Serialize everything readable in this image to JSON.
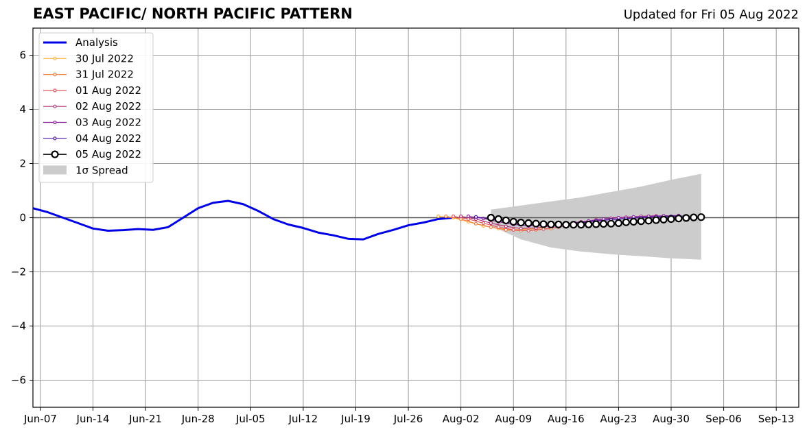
{
  "title": "EAST PACIFIC/ NORTH PACIFIC PATTERN",
  "updated": "Updated for Fri 05 Aug 2022",
  "chart_data": {
    "type": "line",
    "title": "EAST PACIFIC/ NORTH PACIFIC PATTERN",
    "x_axis": {
      "kind": "date",
      "range": [
        "2022-06-06",
        "2022-09-16"
      ],
      "ticks": [
        "2022-06-07",
        "2022-06-14",
        "2022-06-21",
        "2022-06-28",
        "2022-07-05",
        "2022-07-12",
        "2022-07-19",
        "2022-07-26",
        "2022-08-02",
        "2022-08-09",
        "2022-08-16",
        "2022-08-23",
        "2022-08-30",
        "2022-09-06",
        "2022-09-13"
      ],
      "tick_labels": [
        "Jun-07",
        "Jun-14",
        "Jun-21",
        "Jun-28",
        "Jul-05",
        "Jul-12",
        "Jul-19",
        "Jul-26",
        "Aug-02",
        "Aug-09",
        "Aug-16",
        "Aug-23",
        "Aug-30",
        "Sep-06",
        "Sep-13"
      ]
    },
    "y_axis": {
      "range": [
        -7,
        7
      ],
      "ticks": [
        -6,
        -4,
        -2,
        0,
        2,
        4,
        6
      ],
      "tick_labels": [
        "−6",
        "−4",
        "−2",
        "0",
        "2",
        "4",
        "6"
      ]
    },
    "grid": true,
    "zero_line": 0,
    "legend_position": "top-left",
    "legend": [
      "Analysis",
      "30 Jul 2022",
      "31 Jul 2022",
      "01 Aug 2022",
      "02 Aug 2022",
      "03 Aug 2022",
      "04 Aug 2022",
      "05 Aug 2022",
      "1σ Spread"
    ],
    "series": [
      {
        "name": "Analysis",
        "color": "#0000e6",
        "style": "line",
        "points": [
          [
            "2022-06-06",
            0.35
          ],
          [
            "2022-06-08",
            0.2
          ],
          [
            "2022-06-10",
            0.0
          ],
          [
            "2022-06-12",
            -0.2
          ],
          [
            "2022-06-14",
            -0.4
          ],
          [
            "2022-06-16",
            -0.48
          ],
          [
            "2022-06-18",
            -0.46
          ],
          [
            "2022-06-20",
            -0.42
          ],
          [
            "2022-06-22",
            -0.45
          ],
          [
            "2022-06-24",
            -0.35
          ],
          [
            "2022-06-26",
            0.0
          ],
          [
            "2022-06-28",
            0.35
          ],
          [
            "2022-06-30",
            0.55
          ],
          [
            "2022-07-02",
            0.62
          ],
          [
            "2022-07-04",
            0.5
          ],
          [
            "2022-07-06",
            0.25
          ],
          [
            "2022-07-08",
            -0.05
          ],
          [
            "2022-07-10",
            -0.25
          ],
          [
            "2022-07-12",
            -0.38
          ],
          [
            "2022-07-14",
            -0.55
          ],
          [
            "2022-07-16",
            -0.65
          ],
          [
            "2022-07-18",
            -0.78
          ],
          [
            "2022-07-20",
            -0.8
          ],
          [
            "2022-07-22",
            -0.6
          ],
          [
            "2022-07-24",
            -0.45
          ],
          [
            "2022-07-26",
            -0.28
          ],
          [
            "2022-07-28",
            -0.18
          ],
          [
            "2022-07-30",
            -0.05
          ],
          [
            "2022-08-01",
            0.0
          ]
        ]
      },
      {
        "name": "30 Jul 2022",
        "color": "#ffb13b",
        "style": "small-marker",
        "points": [
          [
            "2022-07-30",
            0.05
          ],
          [
            "2022-08-01",
            0.0
          ],
          [
            "2022-08-03",
            -0.15
          ],
          [
            "2022-08-05",
            -0.3
          ],
          [
            "2022-08-07",
            -0.4
          ],
          [
            "2022-08-09",
            -0.45
          ],
          [
            "2022-08-11",
            -0.42
          ],
          [
            "2022-08-13",
            -0.38
          ]
        ]
      },
      {
        "name": "31 Jul 2022",
        "color": "#f07f3c",
        "style": "small-marker",
        "points": [
          [
            "2022-07-31",
            0.05
          ],
          [
            "2022-08-02",
            -0.05
          ],
          [
            "2022-08-04",
            -0.22
          ],
          [
            "2022-08-06",
            -0.35
          ],
          [
            "2022-08-08",
            -0.45
          ],
          [
            "2022-08-10",
            -0.48
          ],
          [
            "2022-08-12",
            -0.45
          ],
          [
            "2022-08-14",
            -0.4
          ]
        ]
      },
      {
        "name": "01 Aug 2022",
        "color": "#e0575f",
        "style": "small-marker",
        "points": [
          [
            "2022-08-01",
            0.05
          ],
          [
            "2022-08-03",
            -0.05
          ],
          [
            "2022-08-05",
            -0.2
          ],
          [
            "2022-08-07",
            -0.35
          ],
          [
            "2022-08-09",
            -0.45
          ],
          [
            "2022-08-11",
            -0.48
          ],
          [
            "2022-08-13",
            -0.42
          ],
          [
            "2022-08-15",
            -0.35
          ],
          [
            "2022-08-17",
            -0.25
          ],
          [
            "2022-08-19",
            -0.15
          ],
          [
            "2022-08-21",
            -0.05
          ],
          [
            "2022-08-23",
            0.0
          ],
          [
            "2022-08-25",
            0.02
          ]
        ]
      },
      {
        "name": "02 Aug 2022",
        "color": "#b63679",
        "style": "small-marker",
        "points": [
          [
            "2022-08-02",
            0.05
          ],
          [
            "2022-08-04",
            -0.05
          ],
          [
            "2022-08-06",
            -0.2
          ],
          [
            "2022-08-08",
            -0.32
          ],
          [
            "2022-08-10",
            -0.4
          ],
          [
            "2022-08-12",
            -0.38
          ],
          [
            "2022-08-14",
            -0.3
          ],
          [
            "2022-08-16",
            -0.22
          ],
          [
            "2022-08-18",
            -0.15
          ],
          [
            "2022-08-20",
            -0.08
          ],
          [
            "2022-08-22",
            -0.02
          ],
          [
            "2022-08-24",
            0.02
          ],
          [
            "2022-08-26",
            0.05
          ],
          [
            "2022-08-28",
            0.07
          ]
        ]
      },
      {
        "name": "03 Aug 2022",
        "color": "#8c1f9e",
        "style": "small-marker",
        "points": [
          [
            "2022-08-03",
            0.05
          ],
          [
            "2022-08-05",
            -0.03
          ],
          [
            "2022-08-07",
            -0.15
          ],
          [
            "2022-08-09",
            -0.25
          ],
          [
            "2022-08-11",
            -0.3
          ],
          [
            "2022-08-13",
            -0.3
          ],
          [
            "2022-08-15",
            -0.25
          ],
          [
            "2022-08-17",
            -0.2
          ],
          [
            "2022-08-19",
            -0.12
          ],
          [
            "2022-08-21",
            -0.05
          ],
          [
            "2022-08-23",
            0.0
          ],
          [
            "2022-08-25",
            0.03
          ],
          [
            "2022-08-27",
            0.05
          ],
          [
            "2022-08-29",
            0.07
          ],
          [
            "2022-08-31",
            0.08
          ]
        ]
      },
      {
        "name": "04 Aug 2022",
        "color": "#4a0fa8",
        "style": "small-marker",
        "points": [
          [
            "2022-08-04",
            0.03
          ],
          [
            "2022-08-06",
            -0.05
          ],
          [
            "2022-08-08",
            -0.15
          ],
          [
            "2022-08-10",
            -0.22
          ],
          [
            "2022-08-12",
            -0.25
          ],
          [
            "2022-08-14",
            -0.25
          ],
          [
            "2022-08-16",
            -0.22
          ],
          [
            "2022-08-18",
            -0.18
          ],
          [
            "2022-08-20",
            -0.12
          ],
          [
            "2022-08-22",
            -0.07
          ],
          [
            "2022-08-24",
            -0.03
          ],
          [
            "2022-08-26",
            0.0
          ],
          [
            "2022-08-28",
            0.03
          ],
          [
            "2022-08-30",
            0.05
          ],
          [
            "2022-09-01",
            0.06
          ]
        ]
      },
      {
        "name": "05 Aug 2022",
        "color": "#000000",
        "style": "large-marker",
        "points": [
          [
            "2022-08-06",
            0.0
          ],
          [
            "2022-08-07",
            -0.05
          ],
          [
            "2022-08-08",
            -0.1
          ],
          [
            "2022-08-09",
            -0.15
          ],
          [
            "2022-08-10",
            -0.18
          ],
          [
            "2022-08-11",
            -0.2
          ],
          [
            "2022-08-12",
            -0.22
          ],
          [
            "2022-08-13",
            -0.24
          ],
          [
            "2022-08-14",
            -0.25
          ],
          [
            "2022-08-15",
            -0.25
          ],
          [
            "2022-08-16",
            -0.26
          ],
          [
            "2022-08-17",
            -0.26
          ],
          [
            "2022-08-18",
            -0.26
          ],
          [
            "2022-08-19",
            -0.25
          ],
          [
            "2022-08-20",
            -0.24
          ],
          [
            "2022-08-21",
            -0.23
          ],
          [
            "2022-08-22",
            -0.22
          ],
          [
            "2022-08-23",
            -0.2
          ],
          [
            "2022-08-24",
            -0.17
          ],
          [
            "2022-08-25",
            -0.15
          ],
          [
            "2022-08-26",
            -0.13
          ],
          [
            "2022-08-27",
            -0.11
          ],
          [
            "2022-08-28",
            -0.09
          ],
          [
            "2022-08-29",
            -0.07
          ],
          [
            "2022-08-30",
            -0.05
          ],
          [
            "2022-08-31",
            -0.03
          ],
          [
            "2022-09-01",
            -0.01
          ],
          [
            "2022-09-02",
            0.01
          ],
          [
            "2022-09-03",
            0.02
          ]
        ]
      }
    ],
    "spread": {
      "name": "1σ Spread",
      "color": "#cccccc",
      "points": [
        [
          "2022-08-06",
          0.3,
          -0.3
        ],
        [
          "2022-08-10",
          0.45,
          -0.8
        ],
        [
          "2022-08-14",
          0.6,
          -1.1
        ],
        [
          "2022-08-18",
          0.75,
          -1.25
        ],
        [
          "2022-08-22",
          0.95,
          -1.35
        ],
        [
          "2022-08-26",
          1.15,
          -1.42
        ],
        [
          "2022-08-30",
          1.4,
          -1.5
        ],
        [
          "2022-09-03",
          1.62,
          -1.55
        ]
      ]
    }
  }
}
